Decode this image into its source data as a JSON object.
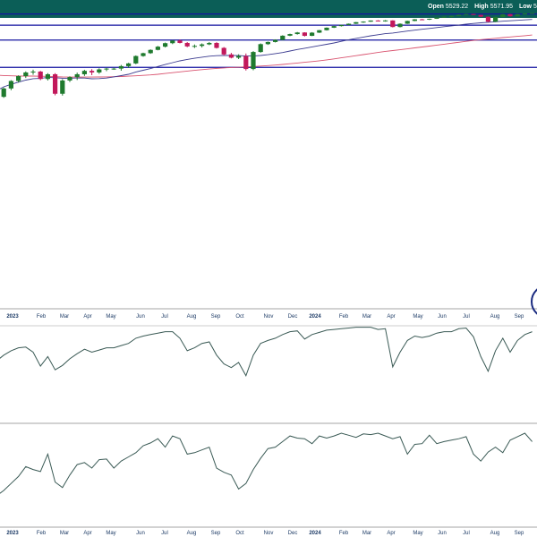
{
  "header": {
    "open_label": "Open",
    "open_value": "5529.22",
    "high_label": "High",
    "high_value": "5571.95",
    "low_label": "Low",
    "low_value": "5"
  },
  "colors": {
    "header_bg": "#0b5e57",
    "candle_up": "#1f7a2e",
    "candle_down": "#c2185b",
    "ma_short": "#3b3b8f",
    "ma_long": "#d9536f",
    "support_lines": "#1515a0",
    "oscillator": "#3a5a55",
    "highlight_circle": "#1a2b80"
  },
  "chart_data": [
    {
      "type": "candlestick",
      "title": "",
      "x_axis_labels": [
        "2023",
        "Feb",
        "Mar",
        "Apr",
        "May",
        "Jun",
        "Jul",
        "Aug",
        "Sep",
        "Oct",
        "Nov",
        "Dec",
        "2024",
        "Feb",
        "Mar",
        "Apr",
        "May",
        "Jun",
        "Jul",
        "Aug",
        "Sep"
      ],
      "grid": false,
      "y_axis_visible": false,
      "horizontal_lines": [
        5669,
        5040,
        4594,
        4140
      ],
      "series_candles": [
        [
          3832,
          3858,
          3802,
          3850
        ],
        [
          3850,
          3928,
          3842,
          3920
        ],
        [
          3920,
          3998,
          3905,
          3990
        ],
        [
          3990,
          4048,
          3975,
          4040
        ],
        [
          4040,
          4092,
          4020,
          4080
        ],
        [
          4080,
          4112,
          4055,
          4090
        ],
        [
          4090,
          4098,
          3998,
          4010
        ],
        [
          4010,
          4072,
          3995,
          4060
        ],
        [
          4060,
          4072,
          3862,
          3875
        ],
        [
          3875,
          4008,
          3860,
          3995
        ],
        [
          3995,
          4038,
          3980,
          4030
        ],
        [
          4030,
          4078,
          4000,
          4060
        ],
        [
          4060,
          4110,
          4042,
          4098
        ],
        [
          4098,
          4118,
          4050,
          4080
        ],
        [
          4080,
          4128,
          4065,
          4115
        ],
        [
          4115,
          4135,
          4095,
          4125
        ],
        [
          4125,
          4135,
          4110,
          4125
        ],
        [
          4125,
          4170,
          4100,
          4155
        ],
        [
          4155,
          4198,
          4132,
          4190
        ],
        [
          4190,
          4305,
          4180,
          4295
        ],
        [
          4295,
          4348,
          4285,
          4340
        ],
        [
          4340,
          4405,
          4330,
          4396
        ],
        [
          4396,
          4468,
          4388,
          4455
        ],
        [
          4455,
          4538,
          4440,
          4525
        ],
        [
          4525,
          4592,
          4505,
          4582
        ],
        [
          4582,
          4607,
          4520,
          4530
        ],
        [
          4530,
          4548,
          4445,
          4460
        ],
        [
          4460,
          4498,
          4430,
          4470
        ],
        [
          4470,
          4520,
          4440,
          4500
        ],
        [
          4500,
          4548,
          4485,
          4530
        ],
        [
          4530,
          4545,
          4420,
          4432
        ],
        [
          4432,
          4448,
          4300,
          4320
        ],
        [
          4320,
          4345,
          4260,
          4270
        ],
        [
          4270,
          4322,
          4250,
          4295
        ],
        [
          4295,
          4335,
          4102,
          4120
        ],
        [
          4120,
          4375,
          4105,
          4360
        ],
        [
          4360,
          4520,
          4348,
          4505
        ],
        [
          4505,
          4560,
          4490,
          4550
        ],
        [
          4550,
          4610,
          4540,
          4598
        ],
        [
          4598,
          4712,
          4588,
          4700
        ],
        [
          4700,
          4755,
          4690,
          4745
        ],
        [
          4745,
          4805,
          4730,
          4790
        ],
        [
          4790,
          4798,
          4680,
          4697
        ],
        [
          4697,
          4800,
          4690,
          4785
        ],
        [
          4785,
          4868,
          4776,
          4860
        ],
        [
          4860,
          4955,
          4850,
          4945
        ],
        [
          4945,
          5012,
          4935,
          5005
        ],
        [
          5005,
          5055,
          4990,
          5048
        ],
        [
          5048,
          5110,
          5035,
          5100
        ],
        [
          5100,
          5180,
          5090,
          5170
        ],
        [
          5170,
          5210,
          5140,
          5195
        ],
        [
          5195,
          5255,
          5185,
          5250
        ],
        [
          5250,
          5268,
          5210,
          5220
        ],
        [
          5220,
          5275,
          5196,
          5254
        ],
        [
          5254,
          5265,
          4955,
          4970
        ],
        [
          4970,
          5115,
          4955,
          5100
        ],
        [
          5100,
          5240,
          5090,
          5230
        ],
        [
          5230,
          5325,
          5218,
          5315
        ],
        [
          5315,
          5340,
          5295,
          5305
        ],
        [
          5305,
          5355,
          5280,
          5345
        ],
        [
          5345,
          5425,
          5335,
          5418
        ],
        [
          5418,
          5480,
          5405,
          5472
        ],
        [
          5472,
          5530,
          5435,
          5520
        ],
        [
          5520,
          5620,
          5505,
          5610
        ],
        [
          5610,
          5680,
          5600,
          5665
        ],
        [
          5665,
          5672,
          5590,
          5600
        ],
        [
          5600,
          5612,
          5455,
          5470
        ],
        [
          5470,
          5485,
          5165,
          5190
        ],
        [
          5190,
          5466,
          5175,
          5455
        ],
        [
          5455,
          5665,
          5442,
          5655
        ],
        [
          5655,
          5682,
          5480,
          5500
        ],
        [
          5500,
          5670,
          5490,
          5660
        ],
        [
          5660,
          5720,
          5640,
          5705
        ],
        [
          5705,
          5765,
          5690,
          5750
        ]
      ],
      "sma_short": [
        3900,
        3935,
        3958,
        3979,
        3999,
        4013,
        4016,
        4027,
        4023,
        4018,
        4018,
        4021,
        4020,
        4012,
        4014,
        4020,
        4032,
        4045,
        4060,
        4085,
        4105,
        4125,
        4150,
        4175,
        4200,
        4225,
        4245,
        4262,
        4278,
        4292,
        4300,
        4303,
        4303,
        4302,
        4295,
        4295,
        4303,
        4316,
        4333,
        4351,
        4376,
        4403,
        4426,
        4451,
        4476,
        4502,
        4530,
        4565,
        4600,
        4632,
        4665,
        4697,
        4727,
        4755,
        4775,
        4802,
        4832,
        4862,
        4890,
        4918,
        4950,
        4982,
        5014,
        5046,
        5080,
        5112,
        5142,
        5165,
        5188,
        5215,
        5237,
        5260,
        5284,
        5310
      ],
      "sma_long": [
        4050,
        4046,
        4043,
        4041,
        4040,
        4040,
        4038,
        4037,
        4034,
        4031,
        4030,
        4030,
        4030,
        4030,
        4031,
        4032,
        4034,
        4036,
        4039,
        4043,
        4048,
        4053,
        4060,
        4068,
        4077,
        4087,
        4096,
        4104,
        4112,
        4120,
        4127,
        4133,
        4138,
        4142,
        4146,
        4150,
        4156,
        4162,
        4169,
        4177,
        4186,
        4196,
        4205,
        4215,
        4226,
        4238,
        4252,
        4268,
        4284,
        4300,
        4317,
        4335,
        4353,
        4370,
        4384,
        4399,
        4415,
        4432,
        4449,
        4466,
        4485,
        4504,
        4523,
        4543,
        4564,
        4584,
        4603,
        4618,
        4634,
        4652,
        4668,
        4684,
        4700,
        4718
      ],
      "annotation": "circle"
    },
    {
      "type": "line",
      "title": "",
      "ylim": [
        0,
        100
      ],
      "y_axis_visible": false,
      "values": [
        52,
        60,
        66,
        70,
        71,
        64,
        45,
        58,
        40,
        46,
        55,
        62,
        68,
        64,
        67,
        70,
        70,
        73,
        76,
        83,
        86,
        88,
        90,
        92,
        92,
        83,
        66,
        70,
        76,
        78,
        60,
        48,
        43,
        50,
        32,
        60,
        76,
        80,
        83,
        88,
        92,
        93,
        82,
        88,
        91,
        94,
        95,
        96,
        97,
        98,
        98,
        98,
        95,
        96,
        44,
        64,
        80,
        86,
        84,
        86,
        90,
        92,
        92,
        96,
        97,
        85,
        58,
        38,
        66,
        83,
        64,
        80,
        88,
        92
      ],
      "reference_line": 100
    },
    {
      "type": "line",
      "title": "",
      "y_axis_visible": false,
      "x_axis_labels": [
        "2023",
        "Feb",
        "Mar",
        "Apr",
        "May",
        "Jun",
        "Jul",
        "Aug",
        "Sep",
        "Oct",
        "Nov",
        "Dec",
        "2024",
        "Feb",
        "Mar",
        "Apr",
        "May",
        "Jun",
        "Jul",
        "Aug",
        "Sep"
      ],
      "values": [
        10,
        18,
        28,
        38,
        52,
        48,
        45,
        70,
        30,
        22,
        40,
        55,
        58,
        50,
        62,
        63,
        50,
        60,
        66,
        72,
        82,
        86,
        92,
        80,
        96,
        92,
        70,
        72,
        76,
        80,
        50,
        44,
        40,
        20,
        28,
        48,
        64,
        78,
        80,
        88,
        96,
        93,
        92,
        85,
        96,
        93,
        96,
        100,
        97,
        94,
        99,
        98,
        100,
        96,
        92,
        95,
        70,
        84,
        85,
        97,
        85,
        88,
        90,
        92,
        95,
        70,
        60,
        73,
        80,
        72,
        90,
        95,
        100,
        88
      ]
    }
  ]
}
